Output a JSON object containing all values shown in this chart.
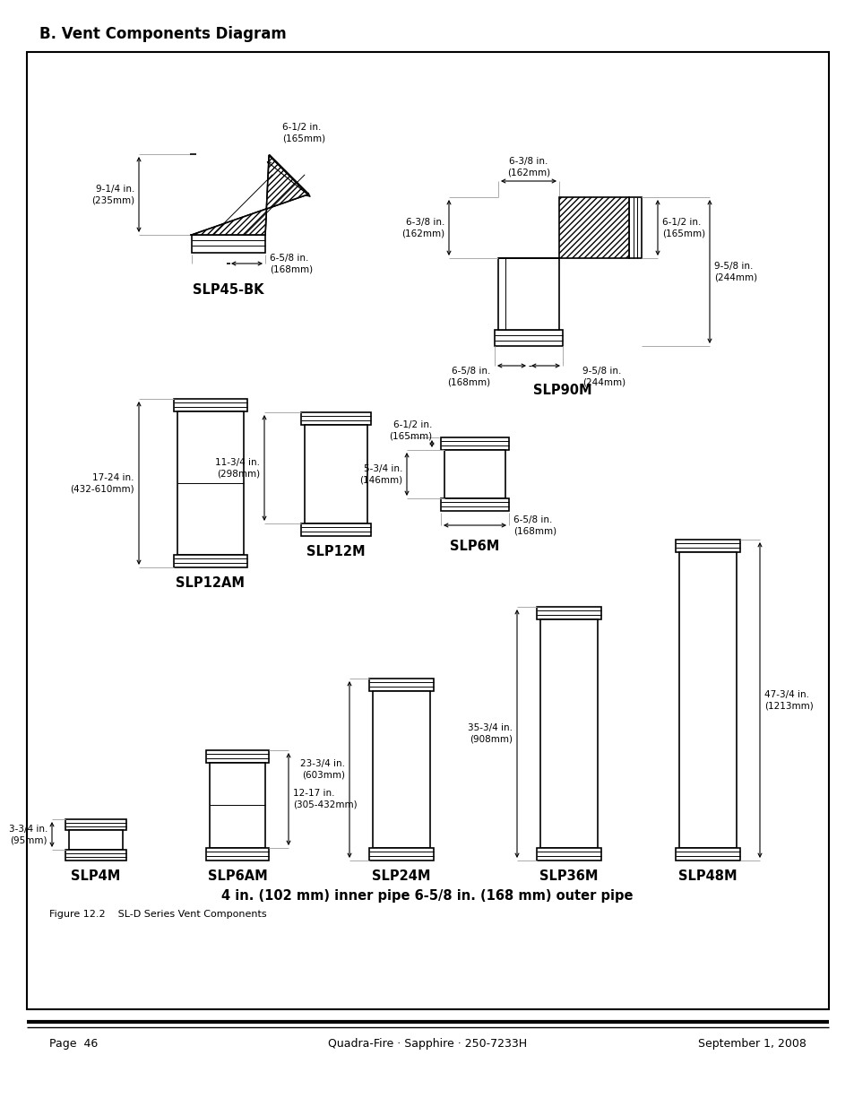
{
  "title": "B. Vent Components Diagram",
  "footer_left": "Page  46",
  "footer_center": "Quadra-Fire · Sapphire · 250-7233H",
  "footer_right": "September 1, 2008",
  "figure_caption": "Figure 12.2    SL-D Series Vent Components",
  "bottom_note": "4 in. (102 mm) inner pipe 6-5/8 in. (168 mm) outer pipe",
  "components": {
    "SLP45BK": {
      "label": "SLP45-BK",
      "h_dim": "9-1/4 in.\n(235mm)",
      "ang_dim": "6-1/2 in.\n(165mm)",
      "w_dim": "6-5/8 in.\n(168mm)"
    },
    "SLP90M": {
      "label": "SLP90M",
      "tw": "6-3/8 in.\n(162mm)",
      "lh": "6-3/8 in.\n(162mm)",
      "rh": "6-1/2 in.\n(165mm)",
      "rv": "9-5/8 in.\n(244mm)",
      "bw": "6-5/8 in.\n(168mm)",
      "brv": "9-5/8 in.\n(244mm)"
    },
    "SLP12AM": {
      "label": "SLP12AM",
      "dim": "17-24 in.\n(432-610mm)"
    },
    "SLP12M": {
      "label": "SLP12M",
      "dim": "11-3/4 in.\n(298mm)"
    },
    "SLP6M": {
      "label": "SLP6M",
      "dt": "6-1/2 in.\n(165mm)",
      "dh": "5-3/4 in.\n(146mm)",
      "dw": "6-5/8 in.\n(168mm)"
    },
    "SLP4M": {
      "label": "SLP4M",
      "dim": "3-3/4 in.\n(95mm)"
    },
    "SLP6AM": {
      "label": "SLP6AM",
      "dim": "12-17 in.\n(305-432mm)"
    },
    "SLP24M": {
      "label": "SLP24M",
      "dim": "23-3/4 in.\n(603mm)"
    },
    "SLP36M": {
      "label": "SLP36M",
      "dim": "35-3/4 in.\n(908mm)"
    },
    "SLP48M": {
      "label": "SLP48M",
      "dim": "47-3/4 in.\n(1213mm)"
    }
  }
}
